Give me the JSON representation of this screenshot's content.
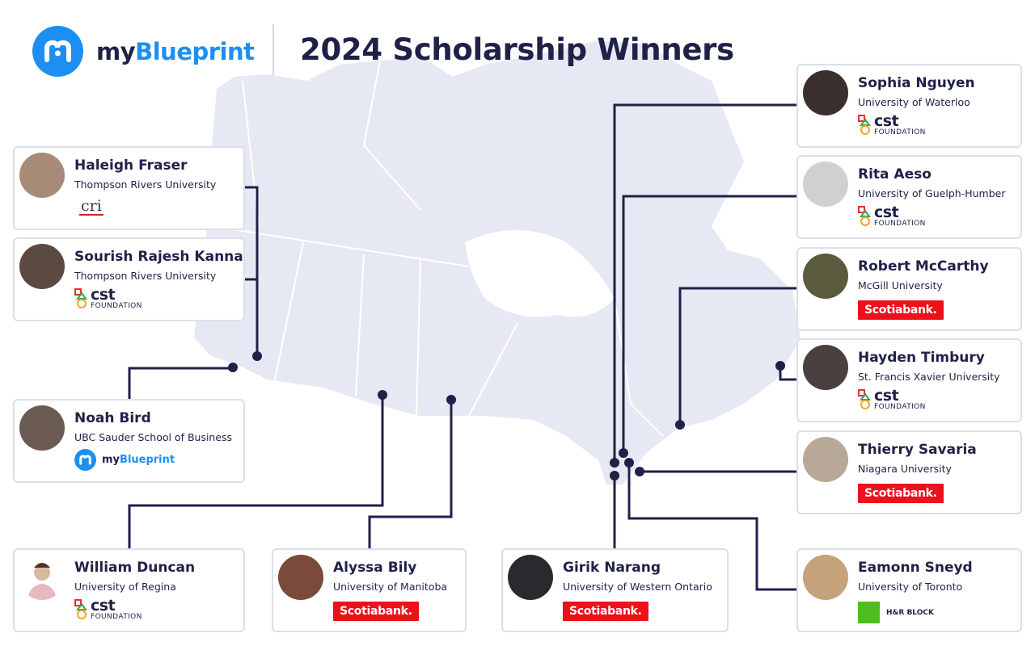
{
  "brand": {
    "name_prefix": "my",
    "name_suffix": "Blueprint",
    "accent": "#1d8ff2"
  },
  "title": "2024 Scholarship Winners",
  "winners": [
    {
      "name": "Haleigh Fraser",
      "university": "Thompson Rivers University",
      "sponsor": "cri"
    },
    {
      "name": "Sourish Rajesh Kanna",
      "university": "Thompson Rivers University",
      "sponsor": "cst",
      "sponsor_text": "cst",
      "sponsor_sub": "FOUNDATION"
    },
    {
      "name": "Noah Bird",
      "university": "UBC Sauder School of Business",
      "sponsor": "myBlueprint",
      "sponsor_prefix": "my",
      "sponsor_suffix": "Blueprint"
    },
    {
      "name": "William Duncan",
      "university": "University of Regina",
      "sponsor": "cst",
      "sponsor_text": "cst",
      "sponsor_sub": "FOUNDATION"
    },
    {
      "name": "Alyssa Bily",
      "university": "University of Manitoba",
      "sponsor": "Scotiabank",
      "sponsor_text": "Scotiabank."
    },
    {
      "name": "Girik Narang",
      "university": "University of Western Ontario",
      "sponsor": "Scotiabank",
      "sponsor_text": "Scotiabank."
    },
    {
      "name": "Sophia Nguyen",
      "university": "University of Waterloo",
      "sponsor": "cst",
      "sponsor_text": "cst",
      "sponsor_sub": "FOUNDATION"
    },
    {
      "name": "Rita Aeso",
      "university": "University of Guelph-Humber",
      "sponsor": "cst",
      "sponsor_text": "cst",
      "sponsor_sub": "FOUNDATION"
    },
    {
      "name": "Robert McCarthy",
      "university": "McGill University",
      "sponsor": "Scotiabank",
      "sponsor_text": "Scotiabank."
    },
    {
      "name": "Hayden Timbury",
      "university": "St. Francis Xavier University",
      "sponsor": "cst",
      "sponsor_text": "cst",
      "sponsor_sub": "FOUNDATION"
    },
    {
      "name": "Thierry Savaria",
      "university": "Niagara University",
      "sponsor": "Scotiabank",
      "sponsor_text": "Scotiabank."
    },
    {
      "name": "Eamonn Sneyd",
      "university": "University of Toronto",
      "sponsor": "H&R BLOCK",
      "sponsor_text": "H&R BLOCK"
    }
  ],
  "colors": {
    "map": "#e6e9f3",
    "connector": "#1f2147",
    "card_border": "#dcdfe8",
    "scotiabank": "#ec111a",
    "hrblock": "#4ebd1d"
  }
}
